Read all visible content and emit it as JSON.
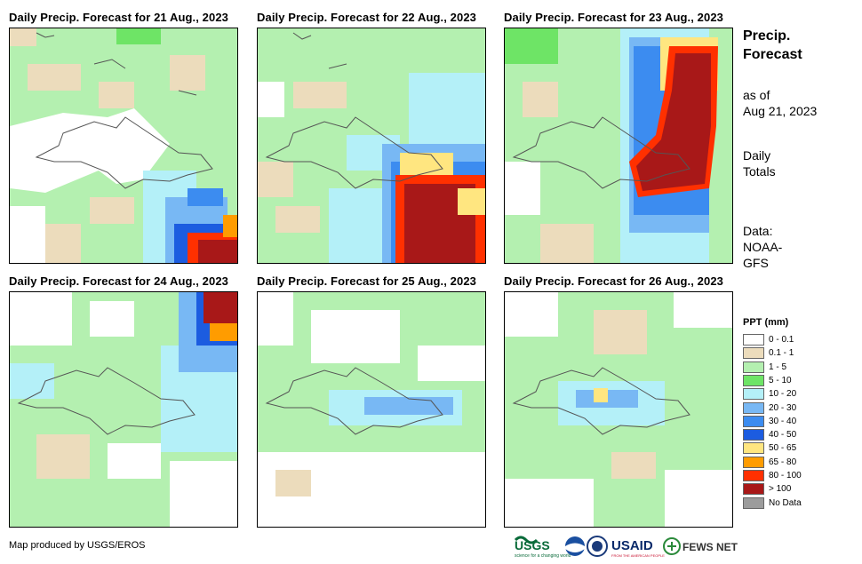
{
  "panels": [
    {
      "title": "Daily Precip. Forecast for 21 Aug., 2023"
    },
    {
      "title": "Daily Precip. Forecast for 22 Aug., 2023"
    },
    {
      "title": "Daily Precip. Forecast for 23 Aug., 2023"
    },
    {
      "title": "Daily Precip. Forecast for 24 Aug., 2023"
    },
    {
      "title": "Daily Precip. Forecast for 25 Aug., 2023"
    },
    {
      "title": "Daily Precip. Forecast for 26 Aug., 2023"
    }
  ],
  "side": {
    "title_line1": "Precip.",
    "title_line2": "Forecast",
    "asof_line1": "as of",
    "asof_line2": "Aug 21, 2023",
    "daily_line1": "Daily",
    "daily_line2": "Totals",
    "data_line1": "Data:",
    "data_line2": "NOAA-",
    "data_line3": "GFS"
  },
  "legend": {
    "title": "PPT (mm)",
    "items": [
      {
        "label": "0 - 0.1",
        "color": "#ffffff"
      },
      {
        "label": "0.1 - 1",
        "color": "#ecdcbc"
      },
      {
        "label": "1 - 5",
        "color": "#b4f0b0"
      },
      {
        "label": "5 - 10",
        "color": "#6ee466"
      },
      {
        "label": "10 - 20",
        "color": "#b4f0f8"
      },
      {
        "label": "20 - 30",
        "color": "#78b8f4"
      },
      {
        "label": "30 - 40",
        "color": "#3c8cf0"
      },
      {
        "label": "40 - 50",
        "color": "#1c5ce0"
      },
      {
        "label": "50 - 65",
        "color": "#ffe680"
      },
      {
        "label": "65 - 80",
        "color": "#ff9c00"
      },
      {
        "label": "80 - 100",
        "color": "#ff3000"
      },
      {
        "label": "> 100",
        "color": "#a81818"
      },
      {
        "label": "No Data",
        "color": "#9c9c9c"
      }
    ]
  },
  "credit": "Map produced by USGS/EROS",
  "logos": {
    "usgs": "USGS",
    "usgs_tagline": "science for a changing world",
    "usaid": "USAID",
    "usaid_tagline": "FROM THE AMERICAN PEOPLE",
    "fews": "FEWS NET"
  }
}
